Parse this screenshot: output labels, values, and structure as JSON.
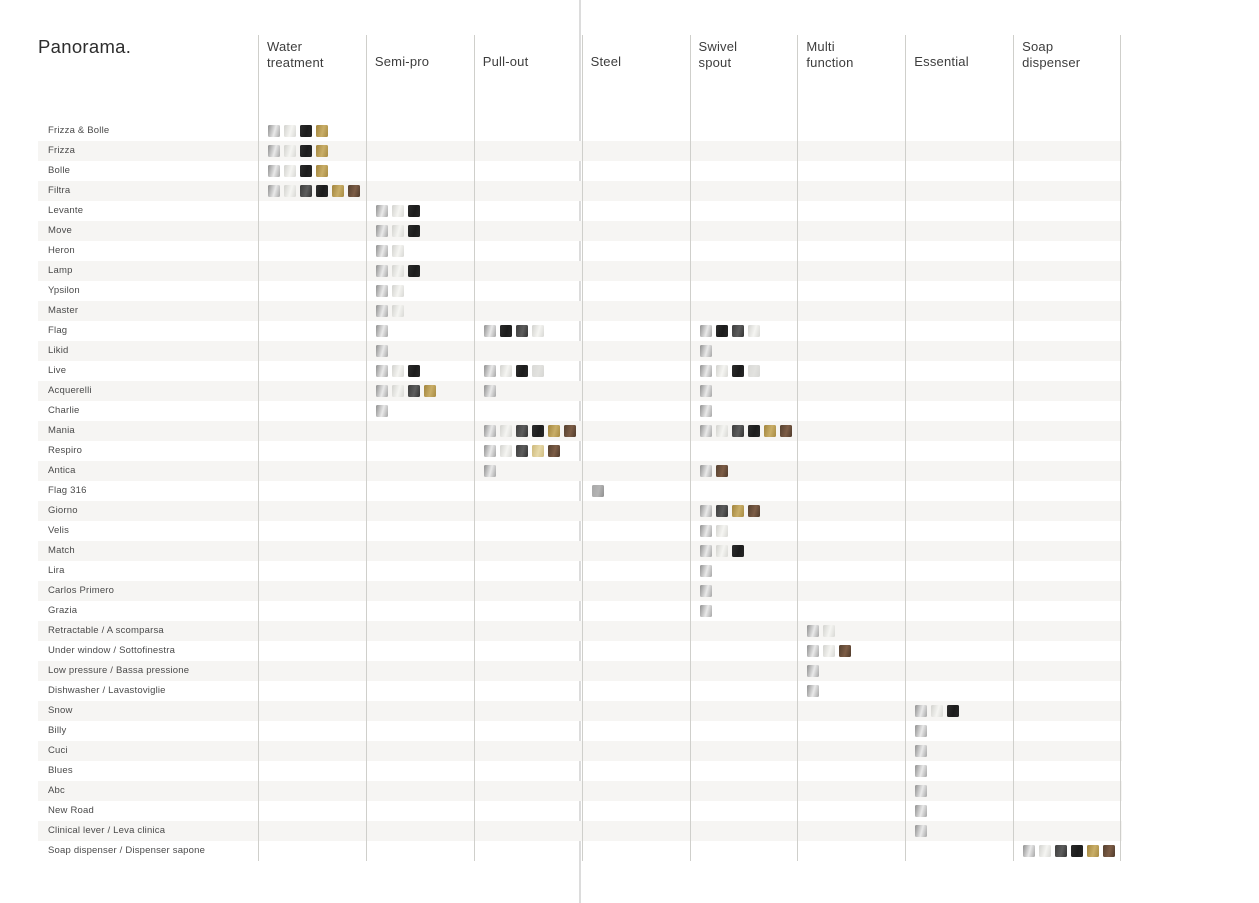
{
  "page": {
    "title": "Panorama."
  },
  "columns": [
    {
      "key": "water",
      "label": "Water\ntreatment"
    },
    {
      "key": "semipro",
      "label": "Semi-pro"
    },
    {
      "key": "pullout",
      "label": "Pull-out"
    },
    {
      "key": "steel",
      "label": "Steel"
    },
    {
      "key": "swivel",
      "label": "Swivel\nspout"
    },
    {
      "key": "multi",
      "label": "Multi\nfunction"
    },
    {
      "key": "essential",
      "label": "Essential"
    },
    {
      "key": "soap",
      "label": "Soap\ndispenser"
    }
  ],
  "palette": {
    "CR": {
      "name": "chrome",
      "stops": [
        "#8f8f8f",
        "#e9e9e9",
        "#a6a6a6"
      ]
    },
    "SS": {
      "name": "brushed-steel",
      "stops": [
        "#d2d2ce",
        "#f5f5f2",
        "#d8d8d4"
      ]
    },
    "GM": {
      "name": "gunmetal",
      "stops": [
        "#3d3d3d",
        "#5d5d5d",
        "#333333"
      ]
    },
    "BK": {
      "name": "matte-black",
      "stops": [
        "#2c2c2c",
        "#1c1c1c",
        "#262626"
      ]
    },
    "GO": {
      "name": "gold",
      "stops": [
        "#a1843c",
        "#c9ae68",
        "#a78a41"
      ]
    },
    "BZ": {
      "name": "bronze",
      "stops": [
        "#54402f",
        "#7d5d46",
        "#4f3a2b"
      ]
    },
    "CH": {
      "name": "champagne",
      "stops": [
        "#cdb87a",
        "#e7d9a9",
        "#d0bc80"
      ]
    },
    "LG": {
      "name": "light-grey",
      "stops": [
        "#d9d9d6",
        "#e2e2df",
        "#d6d6d3"
      ]
    },
    "ST": {
      "name": "stainless-steel",
      "stops": [
        "#a7a7a7",
        "#b4b4b4",
        "#8f8f8f"
      ]
    }
  },
  "colors": {
    "stripe": "#f6f5f3",
    "grid_line": "#cfcfcb",
    "gutter_line": "#dcdcdc",
    "header_text": "#3d3d3d",
    "label_text": "#4a4a4a"
  },
  "rows": [
    {
      "label": "Frizza & Bolle",
      "swatches": {
        "water": [
          "CR",
          "SS",
          "BK",
          "GO"
        ]
      }
    },
    {
      "label": "Frizza",
      "swatches": {
        "water": [
          "CR",
          "SS",
          "BK",
          "GO"
        ]
      }
    },
    {
      "label": "Bolle",
      "swatches": {
        "water": [
          "CR",
          "SS",
          "BK",
          "GO"
        ]
      }
    },
    {
      "label": "Filtra",
      "swatches": {
        "water": [
          "CR",
          "SS",
          "GM",
          "BK",
          "GO",
          "BZ"
        ]
      }
    },
    {
      "label": "Levante",
      "swatches": {
        "semipro": [
          "CR",
          "SS",
          "BK"
        ]
      }
    },
    {
      "label": "Move",
      "swatches": {
        "semipro": [
          "CR",
          "SS",
          "BK"
        ]
      }
    },
    {
      "label": "Heron",
      "swatches": {
        "semipro": [
          "CR",
          "SS"
        ]
      }
    },
    {
      "label": "Lamp",
      "swatches": {
        "semipro": [
          "CR",
          "SS",
          "BK"
        ]
      }
    },
    {
      "label": "Ypsilon",
      "swatches": {
        "semipro": [
          "CR",
          "SS"
        ]
      }
    },
    {
      "label": "Master",
      "swatches": {
        "semipro": [
          "CR",
          "SS"
        ]
      }
    },
    {
      "label": "Flag",
      "swatches": {
        "semipro": [
          "CR"
        ],
        "pullout": [
          "CR",
          "BK",
          "GM",
          "SS"
        ],
        "swivel": [
          "CR",
          "BK",
          "GM",
          "SS"
        ]
      }
    },
    {
      "label": "Likid",
      "swatches": {
        "semipro": [
          "CR"
        ],
        "swivel": [
          "CR"
        ]
      }
    },
    {
      "label": "Live",
      "swatches": {
        "semipro": [
          "CR",
          "SS",
          "BK"
        ],
        "pullout": [
          "CR",
          "SS",
          "BK",
          "LG"
        ],
        "swivel": [
          "CR",
          "SS",
          "BK",
          "LG"
        ]
      }
    },
    {
      "label": "Acquerelli",
      "swatches": {
        "semipro": [
          "CR",
          "SS",
          "GM",
          "GO"
        ],
        "pullout": [
          "CR"
        ],
        "swivel": [
          "CR"
        ]
      }
    },
    {
      "label": "Charlie",
      "swatches": {
        "semipro": [
          "CR"
        ],
        "swivel": [
          "CR"
        ]
      }
    },
    {
      "label": "Mania",
      "swatches": {
        "pullout": [
          "CR",
          "SS",
          "GM",
          "BK",
          "GO",
          "BZ"
        ],
        "swivel": [
          "CR",
          "SS",
          "GM",
          "BK",
          "GO",
          "BZ"
        ]
      }
    },
    {
      "label": "Respiro",
      "swatches": {
        "pullout": [
          "CR",
          "SS",
          "GM",
          "CH",
          "BZ"
        ]
      }
    },
    {
      "label": "Antica",
      "swatches": {
        "pullout": [
          "CR"
        ],
        "swivel": [
          "CR",
          "BZ"
        ]
      }
    },
    {
      "label": "Flag 316",
      "swatches": {
        "steel": [
          "ST"
        ]
      }
    },
    {
      "label": "Giorno",
      "swatches": {
        "swivel": [
          "CR",
          "GM",
          "GO",
          "BZ"
        ]
      }
    },
    {
      "label": "Velis",
      "swatches": {
        "swivel": [
          "CR",
          "SS"
        ]
      }
    },
    {
      "label": "Match",
      "swatches": {
        "swivel": [
          "CR",
          "SS",
          "BK"
        ]
      }
    },
    {
      "label": "Lira",
      "swatches": {
        "swivel": [
          "CR"
        ]
      }
    },
    {
      "label": "Carlos Primero",
      "swatches": {
        "swivel": [
          "CR"
        ]
      }
    },
    {
      "label": "Grazia",
      "swatches": {
        "swivel": [
          "CR"
        ]
      }
    },
    {
      "label": "Retractable / A scomparsa",
      "swatches": {
        "multi": [
          "CR",
          "SS"
        ]
      }
    },
    {
      "label": "Under window / Sottofinestra",
      "swatches": {
        "multi": [
          "CR",
          "SS",
          "BZ"
        ]
      }
    },
    {
      "label": "Low pressure / Bassa pressione",
      "swatches": {
        "multi": [
          "CR"
        ]
      }
    },
    {
      "label": "Dishwasher / Lavastoviglie",
      "swatches": {
        "multi": [
          "CR"
        ]
      }
    },
    {
      "label": "Snow",
      "swatches": {
        "essential": [
          "CR",
          "SS",
          "BK"
        ]
      }
    },
    {
      "label": "Billy",
      "swatches": {
        "essential": [
          "CR"
        ]
      }
    },
    {
      "label": "Cuci",
      "swatches": {
        "essential": [
          "CR"
        ]
      }
    },
    {
      "label": "Blues",
      "swatches": {
        "essential": [
          "CR"
        ]
      }
    },
    {
      "label": "Abc",
      "swatches": {
        "essential": [
          "CR"
        ]
      }
    },
    {
      "label": "New Road",
      "swatches": {
        "essential": [
          "CR"
        ]
      }
    },
    {
      "label": "Clinical lever / Leva clinica",
      "swatches": {
        "essential": [
          "CR"
        ]
      }
    },
    {
      "label": "Soap dispenser / Dispenser sapone",
      "swatches": {
        "soap": [
          "CR",
          "SS",
          "GM",
          "BK",
          "GO",
          "BZ"
        ]
      }
    }
  ]
}
